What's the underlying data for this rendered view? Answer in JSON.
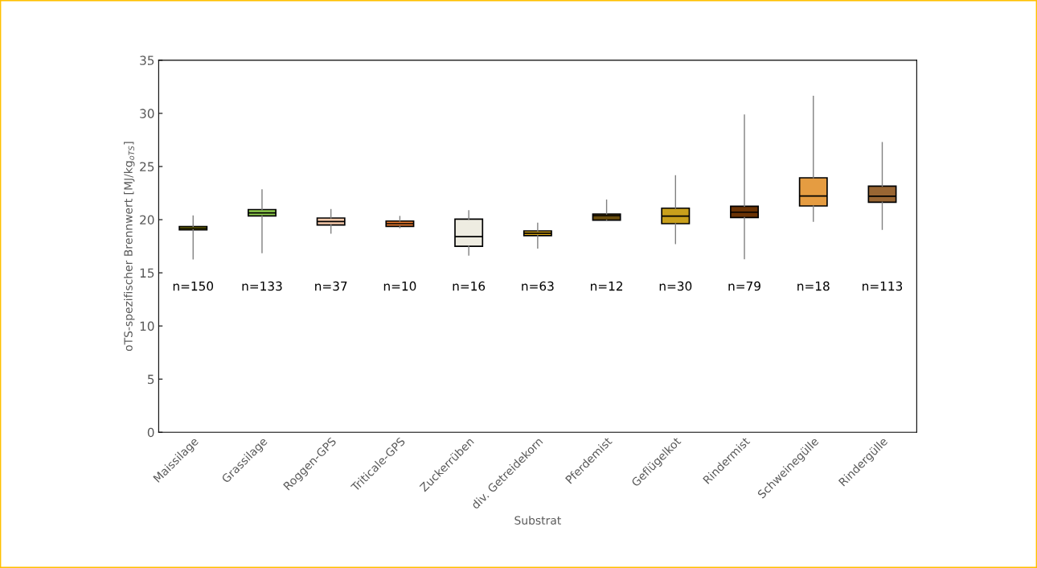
{
  "chart_data": {
    "type": "box",
    "xlabel": "Substrat",
    "ylabel": "oTS-spezifischer Brennwert [MJ/kg$_{oTS}$]",
    "categories": [
      "Maissilage",
      "Grassilage",
      "Roggen-GPS",
      "Triticale-GPS",
      "Zuckerrüben",
      "div. Getreidekorn",
      "Pferdemist",
      "Geflügelkot",
      "Rindermist",
      "Schweinegülle",
      "Rindergülle"
    ],
    "colors": [
      "#c2b600",
      "#92d050",
      "#f8cbad",
      "#ed7d31",
      "#eeece1",
      "#dca815",
      "#6b4e0e",
      "#c9a01c",
      "#6b3305",
      "#e59c41",
      "#996633"
    ],
    "boxes": [
      {
        "low": 16.3,
        "q1": 19.04,
        "median": 19.2,
        "q3": 19.36,
        "high": 20.35
      },
      {
        "low": 16.9,
        "q1": 20.35,
        "median": 20.63,
        "q3": 20.95,
        "high": 22.8
      },
      {
        "low": 18.73,
        "q1": 19.5,
        "median": 19.82,
        "q3": 20.15,
        "high": 20.95
      },
      {
        "low": 19.24,
        "q1": 19.37,
        "median": 19.62,
        "q3": 19.87,
        "high": 20.3
      },
      {
        "low": 16.67,
        "q1": 17.5,
        "median": 18.4,
        "q3": 20.05,
        "high": 20.83
      },
      {
        "low": 17.32,
        "q1": 18.5,
        "median": 18.73,
        "q3": 18.94,
        "high": 19.67
      },
      {
        "low": 19.95,
        "q1": 19.95,
        "median": 20.38,
        "q3": 20.53,
        "high": 21.84
      },
      {
        "low": 17.75,
        "q1": 19.62,
        "median": 20.33,
        "q3": 21.08,
        "high": 24.14
      },
      {
        "low": 16.33,
        "q1": 20.2,
        "median": 20.7,
        "q3": 21.26,
        "high": 29.85
      },
      {
        "low": 19.85,
        "q1": 21.29,
        "median": 22.22,
        "q3": 23.94,
        "high": 31.6
      },
      {
        "low": 19.09,
        "q1": 21.64,
        "median": 22.2,
        "q3": 23.15,
        "high": 27.25
      }
    ],
    "ylim": [
      0,
      35
    ],
    "yticks": [
      0,
      5,
      10,
      15,
      20,
      25,
      30,
      35
    ],
    "annotations": [
      "n=150",
      "n=133",
      "n=37",
      "n=10",
      "n=16",
      "n=63",
      "n=12",
      "n=30",
      "n=79",
      "n=18",
      "n=113"
    ],
    "grid": false
  }
}
